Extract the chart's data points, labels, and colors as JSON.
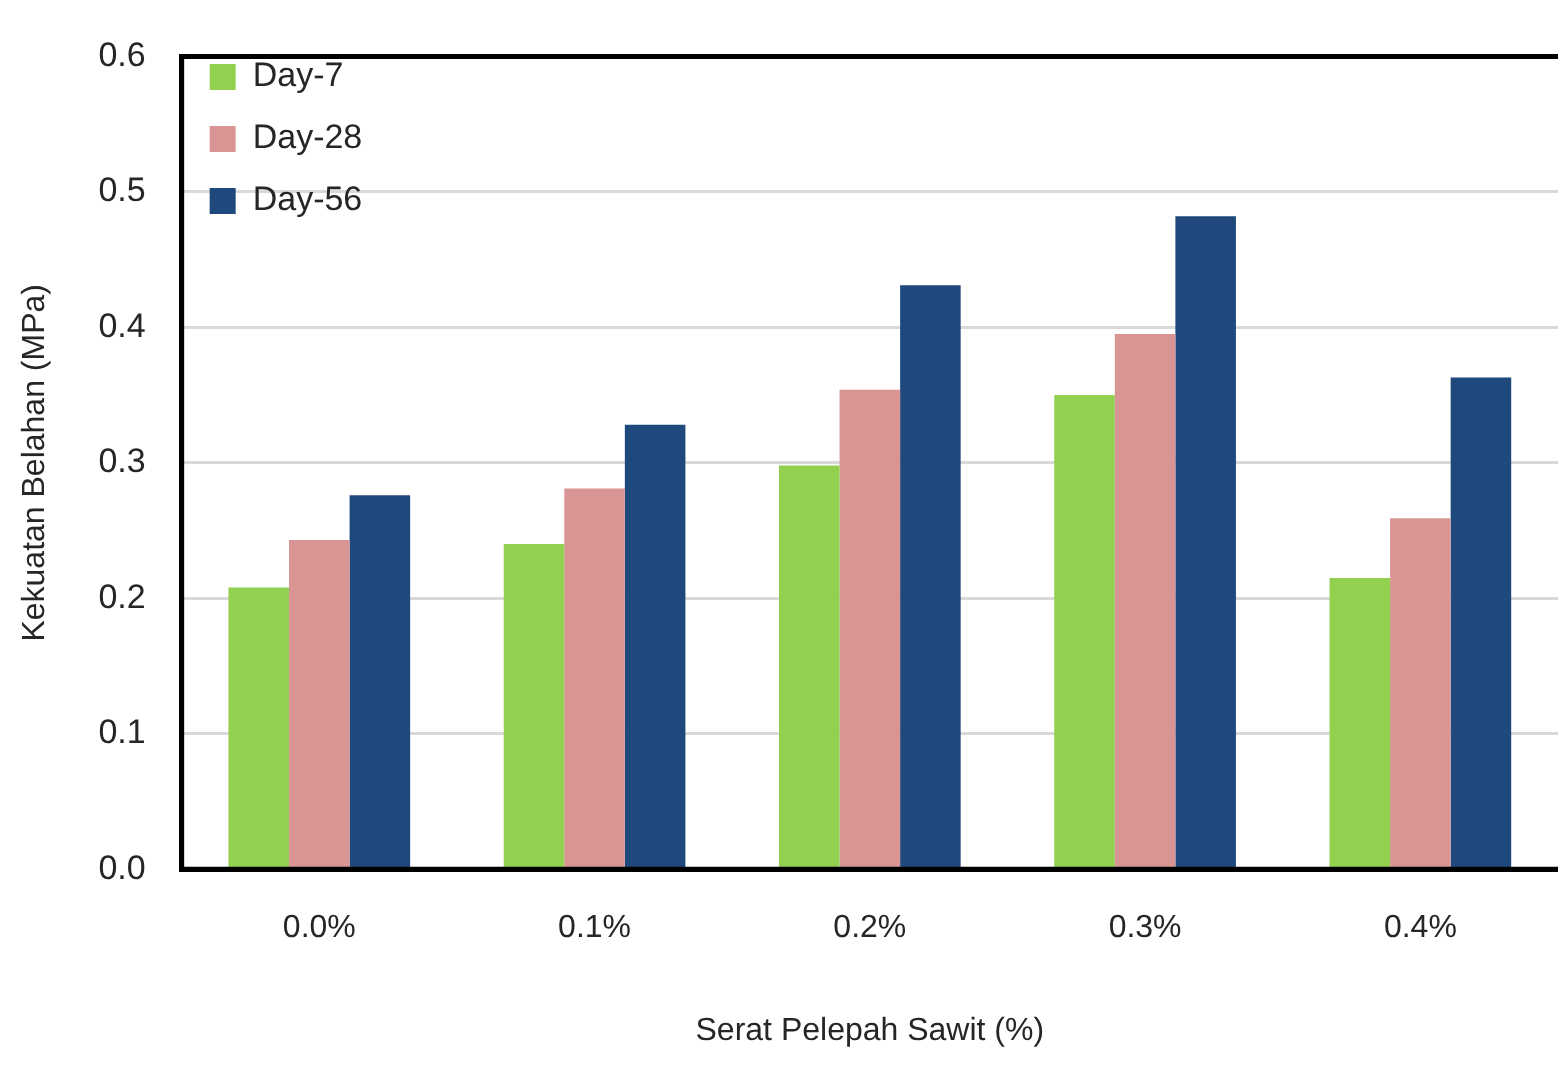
{
  "chart_data": {
    "type": "bar",
    "xlabel": "Serat Pelepah Sawit (%)",
    "ylabel": "Kekuatan Belahan (MPa)",
    "categories": [
      "0.0%",
      "0.1%",
      "0.2%",
      "0.3%",
      "0.4%"
    ],
    "series": [
      {
        "name": "Day-7",
        "color": "#92d050",
        "values": [
          0.208,
          0.24,
          0.298,
          0.35,
          0.215
        ]
      },
      {
        "name": "Day-28",
        "color": "#d99594",
        "values": [
          0.243,
          0.281,
          0.354,
          0.395,
          0.259
        ]
      },
      {
        "name": "Day-56",
        "color": "#1f497d",
        "values": [
          0.276,
          0.328,
          0.431,
          0.482,
          0.363
        ]
      }
    ],
    "ylim": [
      0,
      0.6
    ],
    "yticks": [
      {
        "value": 0,
        "label": "0.0"
      },
      0.1,
      0.2,
      0.3,
      0.4,
      0.5,
      0.6
    ],
    "grid": "y",
    "legend": "top left"
  }
}
